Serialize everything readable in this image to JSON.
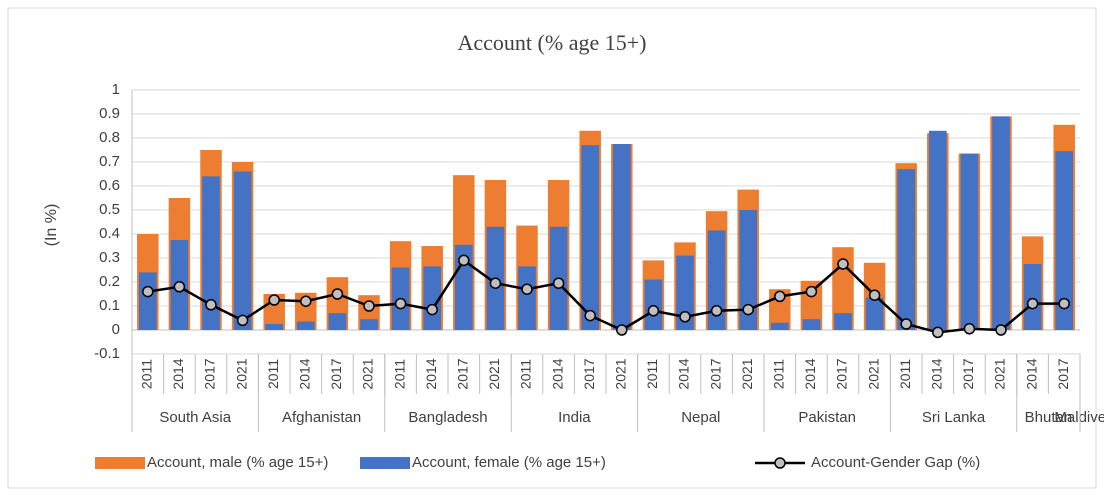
{
  "chart_data": {
    "type": "bar",
    "title": "Account (% age 15+)",
    "y_label": "(In %)",
    "groups": [
      {
        "name": "South Asia",
        "years": [
          "2011",
          "2014",
          "2017",
          "2021"
        ]
      },
      {
        "name": "Afghanistan",
        "years": [
          "2011",
          "2014",
          "2017",
          "2021"
        ]
      },
      {
        "name": "Bangladesh",
        "years": [
          "2011",
          "2014",
          "2017",
          "2021"
        ]
      },
      {
        "name": "India",
        "years": [
          "2011",
          "2014",
          "2017",
          "2021"
        ]
      },
      {
        "name": "Nepal",
        "years": [
          "2011",
          "2014",
          "2017",
          "2021"
        ]
      },
      {
        "name": "Pakistan",
        "years": [
          "2011",
          "2014",
          "2017",
          "2021"
        ]
      },
      {
        "name": "Sri Lanka",
        "years": [
          "2011",
          "2014",
          "2017",
          "2021"
        ]
      },
      {
        "name": "Bhutan",
        "years": [
          "2014",
          "2017"
        ]
      },
      {
        "name": "Maldives",
        "years": []
      }
    ],
    "series": [
      {
        "name": "Account, male (% age 15+)",
        "color": "#ed7d31",
        "kind": "bar",
        "values": [
          0.4,
          0.55,
          0.75,
          0.7,
          0.15,
          0.155,
          0.22,
          0.145,
          0.37,
          0.35,
          0.645,
          0.625,
          0.435,
          0.625,
          0.83,
          0.775,
          0.29,
          0.365,
          0.495,
          0.585,
          0.17,
          0.205,
          0.345,
          0.28,
          0.695,
          0.82,
          0.735,
          0.89,
          0.39,
          0.855
        ]
      },
      {
        "name": "Account, female (% age 15+)",
        "color": "#4472c4",
        "kind": "bar",
        "values": [
          0.24,
          0.375,
          0.64,
          0.66,
          0.025,
          0.035,
          0.07,
          0.045,
          0.26,
          0.265,
          0.355,
          0.43,
          0.265,
          0.43,
          0.77,
          0.775,
          0.21,
          0.31,
          0.415,
          0.5,
          0.03,
          0.045,
          0.07,
          0.135,
          0.67,
          0.83,
          0.735,
          0.89,
          0.275,
          0.745
        ]
      },
      {
        "name": "Account-Gender Gap (%)",
        "color": "#000000",
        "marker_color": "#bfbfbf",
        "kind": "line",
        "values": [
          0.16,
          0.18,
          0.105,
          0.04,
          0.125,
          0.12,
          0.15,
          0.1,
          0.11,
          0.085,
          0.29,
          0.195,
          0.17,
          0.195,
          0.06,
          0.0,
          0.08,
          0.055,
          0.08,
          0.085,
          0.14,
          0.16,
          0.275,
          0.145,
          0.025,
          -0.01,
          0.005,
          0.0,
          0.11,
          0.11
        ]
      }
    ],
    "ylim": [
      -0.1,
      1
    ],
    "yticks": [
      -0.1,
      0,
      0.1,
      0.2,
      0.3,
      0.4,
      0.5,
      0.6,
      0.7,
      0.8,
      0.9,
      1
    ],
    "grid": true,
    "legend": "bottom"
  }
}
